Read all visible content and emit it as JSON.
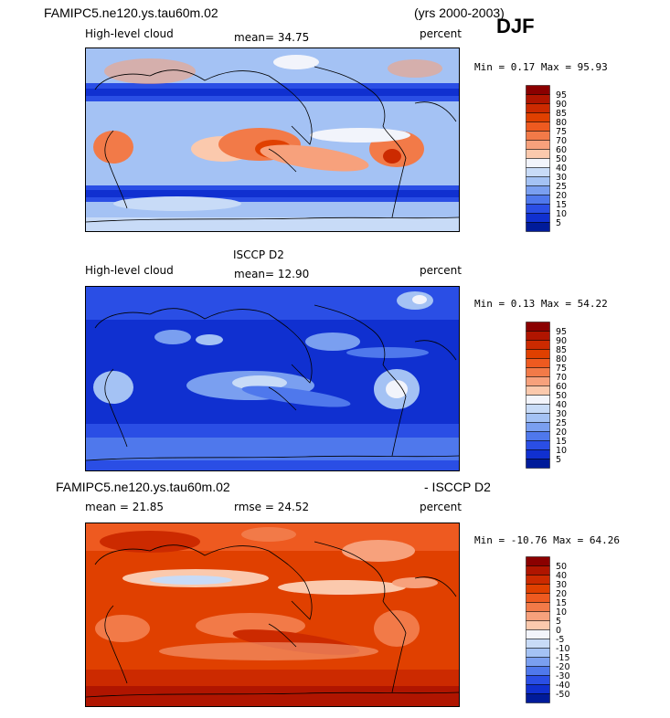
{
  "header": {
    "model_name": "FAMIPC5.ne120.ys.tau60m.02",
    "years": "(yrs 2000-2003)",
    "season": "DJF"
  },
  "panels": [
    {
      "id": "model",
      "title": "",
      "left_label": "High-level cloud",
      "stats_text": "mean=  34.75",
      "units": "percent",
      "minmax": "Min =   0.17 Max =  95.93",
      "levels": [
        "95",
        "90",
        "85",
        "80",
        "75",
        "70",
        "60",
        "50",
        "40",
        "30",
        "25",
        "20",
        "15",
        "10",
        "5"
      ],
      "colors": [
        "#8b0000",
        "#b01500",
        "#cc2a00",
        "#e04000",
        "#ee5a20",
        "#f27a48",
        "#f7a17c",
        "#fbc9ad",
        "#f2f4fb",
        "#c8dbf7",
        "#a4c2f4",
        "#7a9ff0",
        "#4f78ec",
        "#2a4ee5",
        "#1030d0",
        "#001b9a"
      ]
    },
    {
      "id": "obs",
      "title": "ISCCP D2",
      "left_label": "High-level cloud",
      "stats_text": "mean=  12.90",
      "units": "percent",
      "minmax": "Min =   0.13 Max =  54.22",
      "levels": [
        "95",
        "90",
        "85",
        "80",
        "75",
        "70",
        "60",
        "50",
        "40",
        "30",
        "25",
        "20",
        "15",
        "10",
        "5"
      ],
      "colors": [
        "#8b0000",
        "#b01500",
        "#cc2a00",
        "#e04000",
        "#ee5a20",
        "#f27a48",
        "#f7a17c",
        "#fbc9ad",
        "#f2f4fb",
        "#c8dbf7",
        "#a4c2f4",
        "#7a9ff0",
        "#4f78ec",
        "#2a4ee5",
        "#1030d0",
        "#001b9a"
      ]
    },
    {
      "id": "diff",
      "title_left": "FAMIPC5.ne120.ys.tau60m.02",
      "title_right": "- ISCCP D2",
      "mean_text": "mean =   21.85",
      "rmse_text": "rmse =   24.52",
      "units": "percent",
      "minmax": "Min = -10.76 Max =  64.26",
      "levels": [
        "50",
        "40",
        "30",
        "20",
        "15",
        "10",
        "5",
        "0",
        "-5",
        "-10",
        "-15",
        "-20",
        "-30",
        "-40",
        "-50"
      ],
      "colors": [
        "#8b0000",
        "#b01500",
        "#cc2a00",
        "#e04000",
        "#ee5a20",
        "#f27a48",
        "#f7a17c",
        "#fbc9ad",
        "#f2f4fb",
        "#c8dbf7",
        "#a4c2f4",
        "#7a9ff0",
        "#4f78ec",
        "#2a4ee5",
        "#1030d0",
        "#001b9a"
      ]
    }
  ],
  "chart_data": [
    {
      "type": "heatmap",
      "title": "FAMIPC5.ne120.ys.tau60m.02 (yrs 2000-2003) DJF",
      "variable": "High-level cloud",
      "units": "percent",
      "mean": 34.75,
      "min": 0.17,
      "max": 95.93,
      "contour_levels": [
        5,
        10,
        15,
        20,
        25,
        30,
        40,
        50,
        60,
        70,
        75,
        80,
        85,
        90,
        95
      ]
    },
    {
      "type": "heatmap",
      "title": "ISCCP D2",
      "variable": "High-level cloud",
      "units": "percent",
      "mean": 12.9,
      "min": 0.13,
      "max": 54.22,
      "contour_levels": [
        5,
        10,
        15,
        20,
        25,
        30,
        40,
        50,
        60,
        70,
        75,
        80,
        85,
        90,
        95
      ]
    },
    {
      "type": "heatmap",
      "title": "FAMIPC5.ne120.ys.tau60m.02 - ISCCP D2",
      "units": "percent",
      "mean": 21.85,
      "rmse": 24.52,
      "min": -10.76,
      "max": 64.26,
      "contour_levels": [
        -50,
        -40,
        -30,
        -20,
        -15,
        -10,
        -5,
        0,
        5,
        10,
        15,
        20,
        30,
        40,
        50
      ]
    }
  ]
}
